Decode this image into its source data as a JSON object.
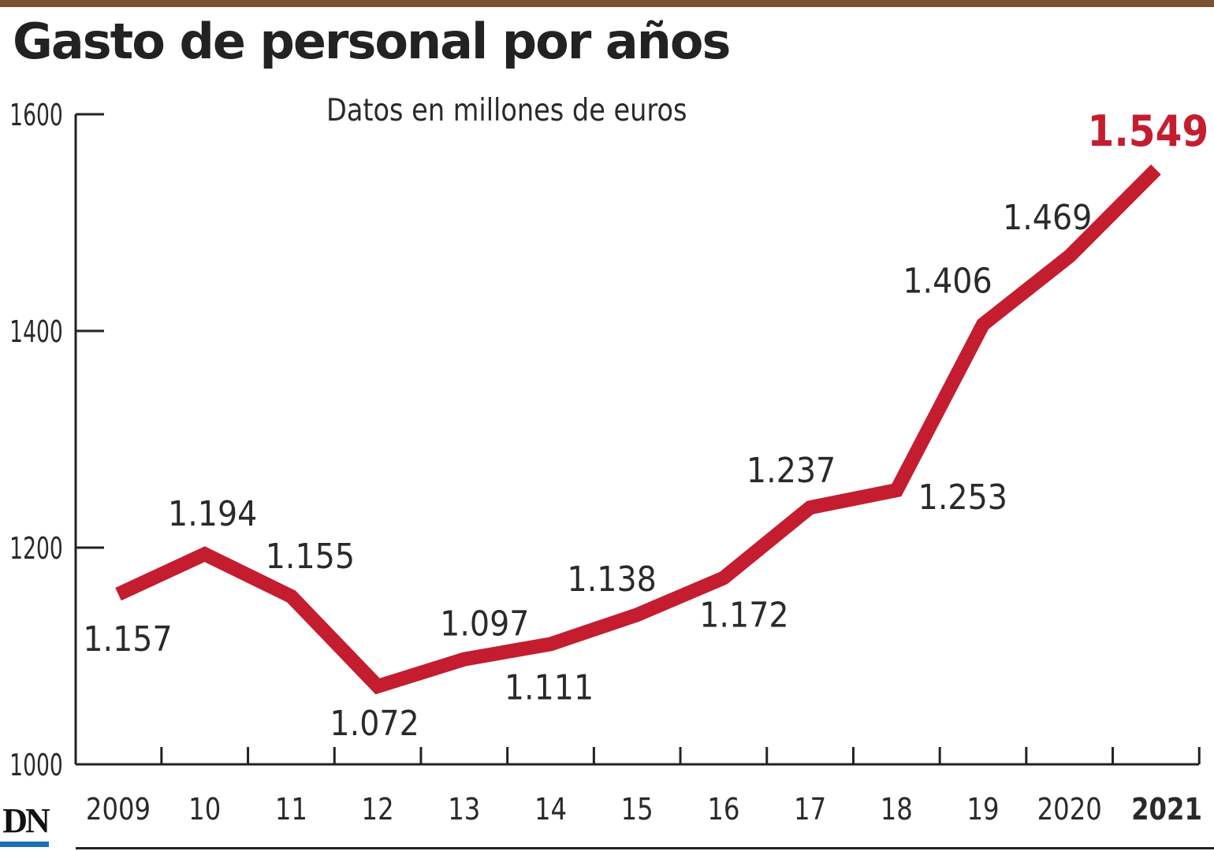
{
  "title": "Gasto de personal por años",
  "subtitle": "Datos en millones de euros",
  "colors": {
    "top_bar": "#7a5230",
    "line": "#c41d2f",
    "highlight": "#c41d2f",
    "logo_accent": "#1f6fb5"
  },
  "logo": {
    "text": "DN"
  },
  "chart_data": {
    "type": "line",
    "title": "Gasto de personal por años",
    "subtitle": "Datos en millones de euros",
    "xlabel": "",
    "ylabel": "",
    "x_ticks": [
      "2009",
      "10",
      "11",
      "12",
      "13",
      "14",
      "15",
      "16",
      "17",
      "18",
      "19",
      "2020",
      "2021"
    ],
    "y_ticks": [
      1000,
      1200,
      1400,
      1600
    ],
    "ylim": [
      1000,
      1600
    ],
    "grid": false,
    "highlight_last": true,
    "series": [
      {
        "values": [
          1157,
          1194,
          1155,
          1072,
          1097,
          1111,
          1138,
          1172,
          1237,
          1253,
          1406,
          1469,
          1549
        ],
        "labels": [
          "1.157",
          "1.194",
          "1.155",
          "1.072",
          "1.097",
          "1.111",
          "1.138",
          "1.172",
          "1.237",
          "1.253",
          "1.406",
          "1.469",
          "1.549"
        ]
      }
    ]
  }
}
